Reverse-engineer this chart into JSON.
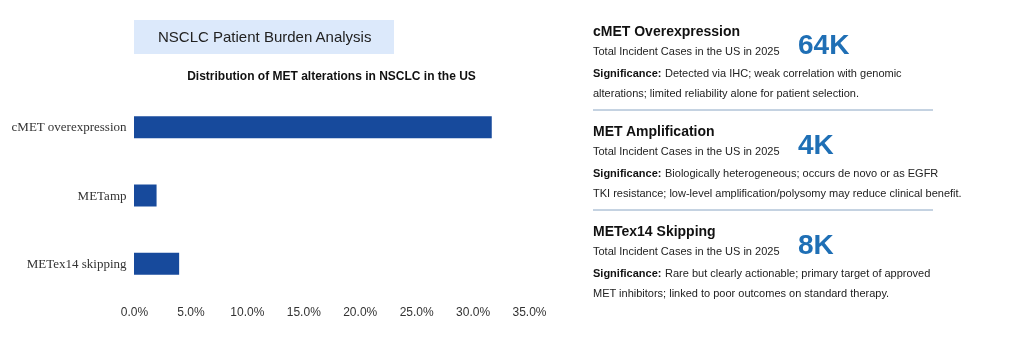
{
  "chart_data": [
    {
      "type": "other",
      "title": "NSCLC Patient Burden Analysis"
    },
    {
      "type": "bar",
      "orientation": "horizontal",
      "title": "Distribution of MET alterations in NSCLC in the US",
      "categories": [
        "cMET overexpression",
        "METamp",
        "METex14 skipping"
      ],
      "values": [
        31.7,
        2.0,
        4.0
      ],
      "color": "#174a9c",
      "xlim": [
        0,
        35
      ],
      "xticks": [
        {
          "value": 0,
          "label": "0.0%"
        },
        {
          "value": 5,
          "label": "5.0%"
        },
        {
          "value": 10,
          "label": "10.0%"
        },
        {
          "value": 15,
          "label": "15.0%"
        },
        {
          "value": 20,
          "label": "20.0%"
        },
        {
          "value": 25,
          "label": "25.0%"
        },
        {
          "value": 30,
          "label": "30.0%"
        },
        {
          "value": 35,
          "label": "35.0%"
        }
      ],
      "grid": false
    },
    {
      "type": "other",
      "annotations": [
        "cMET Overexpression",
        "Total Incident Cases in the US in 2025",
        "64K",
        "Significance:",
        "Detected via IHC; weak correlation with genomic alterations; limited reliability alone for patient selection.",
        "MET Amplification",
        "Total Incident Cases in the US in 2025",
        "4K",
        "Significance:",
        "Biologically heterogeneous; occurs de novo or as EGFR TKI resistance; low-level amplification/polysomy may reduce clinical benefit.",
        "METex14 Skipping",
        "Total Incident Cases in the US in 2025",
        "8K",
        "Significance:",
        "Rare but clearly actionable; primary target of approved MET inhibitors; linked to poor outcomes on standard therapy."
      ]
    }
  ]
}
